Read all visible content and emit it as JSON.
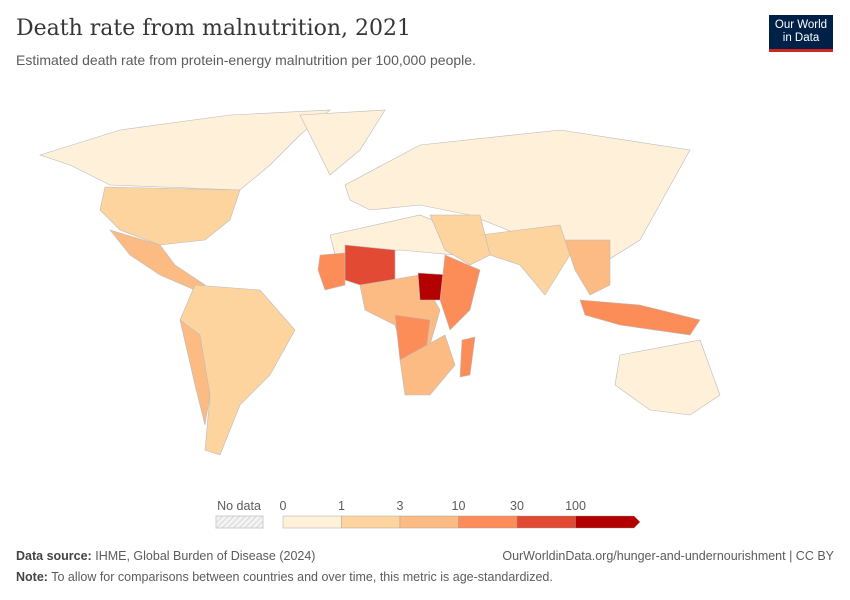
{
  "header": {
    "title": "Death rate from malnutrition, 2021",
    "subtitle": "Estimated death rate from protein-energy malnutrition per 100,000 people.",
    "logo": "Our World in Data"
  },
  "legend": {
    "no_data_label": "No data",
    "ticks": [
      "0",
      "1",
      "3",
      "10",
      "30",
      "100"
    ],
    "colors": [
      "#fef0d9",
      "#fdd49e",
      "#fdbb84",
      "#fc8d59",
      "#e34a33",
      "#b30000"
    ],
    "no_data_color": "#e6e6e6"
  },
  "regions": [
    {
      "name": "Canada/Russia/North",
      "bin": 0
    },
    {
      "name": "Greenland",
      "bin": 0
    },
    {
      "name": "United States",
      "bin": 1
    },
    {
      "name": "Mexico & Central America",
      "bin": 2
    },
    {
      "name": "South America",
      "bin": 1
    },
    {
      "name": "Western Andes",
      "bin": 2
    },
    {
      "name": "Europe & Asia",
      "bin": 0
    },
    {
      "name": "North Africa",
      "bin": 0
    },
    {
      "name": "West Sahel",
      "bin": 3
    },
    {
      "name": "Mali/Niger",
      "bin": 4
    },
    {
      "name": "Central Africa",
      "bin": 2
    },
    {
      "name": "Angola/DRC",
      "bin": 3
    },
    {
      "name": "South Sudan",
      "bin": 5
    },
    {
      "name": "Horn of Africa",
      "bin": 3
    },
    {
      "name": "Southern Africa",
      "bin": 2
    },
    {
      "name": "Madagascar",
      "bin": 3
    },
    {
      "name": "South Asia",
      "bin": 1
    },
    {
      "name": "Southeast Asia",
      "bin": 2
    },
    {
      "name": "Indonesia/PNG",
      "bin": 3
    },
    {
      "name": "Middle East",
      "bin": 1
    },
    {
      "name": "Australia",
      "bin": 0
    }
  ],
  "footer": {
    "source_label": "Data source:",
    "source": "IHME, Global Burden of Disease (2024)",
    "url": "OurWorldinData.org/hunger-and-undernourishment | CC BY",
    "note_label": "Note:",
    "note": "To allow for comparisons between countries and over time, this metric is age-standardized."
  }
}
